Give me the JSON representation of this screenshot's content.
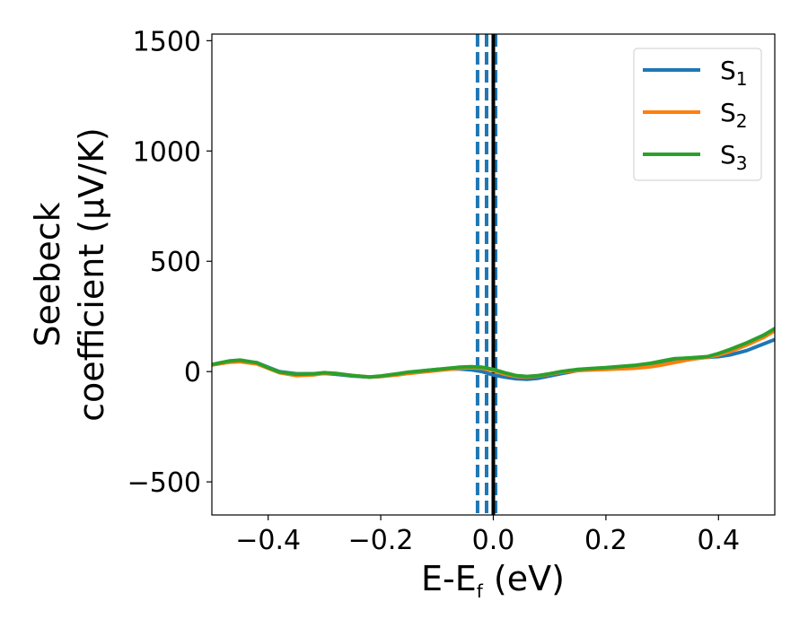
{
  "chart_data": {
    "type": "line",
    "xlabel_main": "E-E",
    "xlabel_sub": "f",
    "xlabel_unit": " (eV)",
    "ylabel_line1": "Seebeck",
    "ylabel_line2": "coefficient  (μV/K)",
    "xlim": [
      -0.5,
      0.5
    ],
    "ylim": [
      -650,
      1530
    ],
    "xticks": [
      {
        "value": -0.4,
        "label": "−0.4"
      },
      {
        "value": -0.2,
        "label": "−0.2"
      },
      {
        "value": 0.0,
        "label": "0.0"
      },
      {
        "value": 0.2,
        "label": "0.2"
      },
      {
        "value": 0.4,
        "label": "0.4"
      }
    ],
    "yticks": [
      {
        "value": -500,
        "label": "−500"
      },
      {
        "value": 0,
        "label": "0"
      },
      {
        "value": 500,
        "label": "500"
      },
      {
        "value": 1000,
        "label": "1000"
      },
      {
        "value": 1500,
        "label": "1500"
      }
    ],
    "legend_position": "top-right",
    "vlines": [
      {
        "x": -0.028,
        "style": "dashed",
        "color": "#1f77b4"
      },
      {
        "x": -0.012,
        "style": "dashed",
        "color": "#1f77b4"
      },
      {
        "x": 0.004,
        "style": "dashed",
        "color": "#1f77b4"
      },
      {
        "x": 0.0,
        "style": "solid",
        "color": "#000000"
      }
    ],
    "series": [
      {
        "name_main": "S",
        "name_sub": "1",
        "color": "#1f77b4",
        "x": [
          -0.5,
          -0.47,
          -0.45,
          -0.42,
          -0.4,
          -0.38,
          -0.35,
          -0.32,
          -0.3,
          -0.28,
          -0.25,
          -0.22,
          -0.2,
          -0.17,
          -0.15,
          -0.12,
          -0.1,
          -0.08,
          -0.06,
          -0.04,
          -0.02,
          0.0,
          0.02,
          0.04,
          0.06,
          0.08,
          0.1,
          0.12,
          0.15,
          0.18,
          0.2,
          0.22,
          0.25,
          0.28,
          0.3,
          0.32,
          0.35,
          0.38,
          0.4,
          0.42,
          0.45,
          0.48,
          0.5
        ],
        "y": [
          30,
          45,
          48,
          40,
          20,
          0,
          -10,
          -10,
          -8,
          -12,
          -20,
          -25,
          -22,
          -12,
          -5,
          5,
          10,
          12,
          12,
          8,
          0,
          -15,
          -25,
          -32,
          -35,
          -30,
          -20,
          -10,
          5,
          12,
          15,
          18,
          25,
          35,
          42,
          50,
          58,
          65,
          68,
          75,
          95,
          125,
          145
        ]
      },
      {
        "name_main": "S",
        "name_sub": "2",
        "color": "#ff7f0e",
        "x": [
          -0.5,
          -0.47,
          -0.45,
          -0.42,
          -0.4,
          -0.38,
          -0.35,
          -0.32,
          -0.3,
          -0.28,
          -0.25,
          -0.22,
          -0.2,
          -0.17,
          -0.15,
          -0.12,
          -0.1,
          -0.08,
          -0.06,
          -0.04,
          -0.02,
          0.0,
          0.02,
          0.04,
          0.06,
          0.08,
          0.1,
          0.12,
          0.15,
          0.18,
          0.2,
          0.22,
          0.25,
          0.28,
          0.3,
          0.32,
          0.35,
          0.38,
          0.4,
          0.42,
          0.45,
          0.48,
          0.5
        ],
        "y": [
          30,
          42,
          45,
          35,
          15,
          -5,
          -18,
          -15,
          -8,
          -8,
          -18,
          -25,
          -22,
          -15,
          -8,
          0,
          5,
          10,
          15,
          18,
          15,
          5,
          -12,
          -22,
          -25,
          -20,
          -12,
          -3,
          5,
          8,
          10,
          12,
          15,
          22,
          30,
          40,
          55,
          65,
          75,
          90,
          120,
          155,
          185
        ]
      },
      {
        "name_main": "S",
        "name_sub": "3",
        "color": "#2ca02c",
        "x": [
          -0.5,
          -0.47,
          -0.45,
          -0.42,
          -0.4,
          -0.38,
          -0.35,
          -0.32,
          -0.3,
          -0.28,
          -0.25,
          -0.22,
          -0.2,
          -0.17,
          -0.15,
          -0.12,
          -0.1,
          -0.08,
          -0.06,
          -0.04,
          -0.02,
          0.0,
          0.02,
          0.04,
          0.06,
          0.08,
          0.1,
          0.12,
          0.15,
          0.18,
          0.2,
          0.22,
          0.25,
          0.28,
          0.3,
          0.32,
          0.35,
          0.38,
          0.4,
          0.42,
          0.45,
          0.48,
          0.5
        ],
        "y": [
          32,
          48,
          52,
          40,
          18,
          -2,
          -12,
          -10,
          -5,
          -8,
          -18,
          -25,
          -20,
          -10,
          -2,
          5,
          10,
          15,
          20,
          22,
          20,
          10,
          -5,
          -18,
          -22,
          -18,
          -10,
          0,
          10,
          15,
          18,
          22,
          28,
          38,
          48,
          58,
          62,
          68,
          82,
          100,
          130,
          165,
          195
        ]
      }
    ]
  }
}
